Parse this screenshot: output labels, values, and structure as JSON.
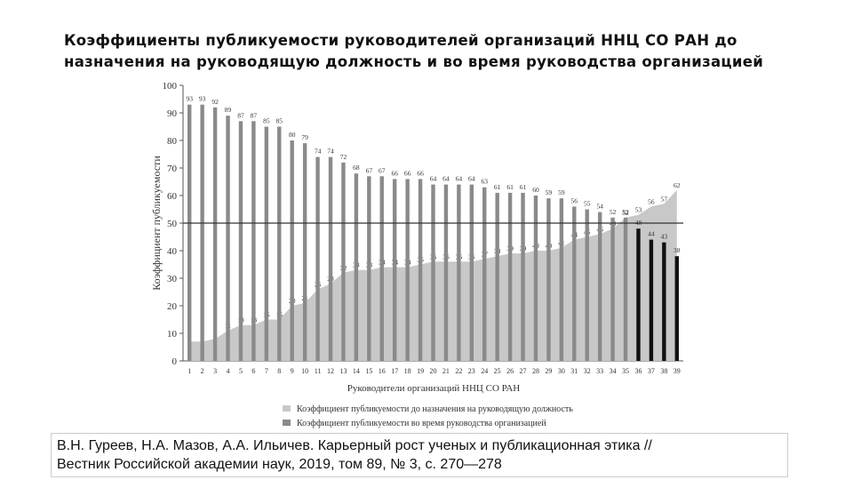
{
  "chart_data": {
    "type": "bar-area",
    "title": [
      "Коэффициенты публикуемости руководителей организаций ННЦ СО РАН до",
      "назначения на руководящую должность и во время руководства организацией"
    ],
    "y_label": "Коэффициент публикуемости",
    "x_label": "Руководители организаций ННЦ СО РАН",
    "categories": [
      "1",
      "2",
      "3",
      "4",
      "5",
      "6",
      "7",
      "8",
      "9",
      "10",
      "11",
      "12",
      "13",
      "14",
      "15",
      "16",
      "17",
      "18",
      "19",
      "20",
      "21",
      "22",
      "23",
      "24",
      "25",
      "26",
      "27",
      "28",
      "29",
      "30",
      "31",
      "32",
      "33",
      "34",
      "35",
      "36",
      "37",
      "38",
      "39"
    ],
    "series": [
      {
        "name": "Коэффициент публикуемости до назначения на руководящую должность",
        "type": "area",
        "color": "#c8c8c8",
        "values": [
          7,
          7,
          8,
          11,
          13,
          13,
          15,
          15,
          20,
          21,
          26,
          28,
          32,
          33,
          33,
          34,
          34,
          34,
          35,
          36,
          36,
          36,
          36,
          37,
          38,
          39,
          39,
          40,
          40,
          41,
          44,
          45,
          46,
          48,
          52,
          53,
          56,
          57,
          62
        ]
      },
      {
        "name": "Коэффициент публикуемости во время руководства организацией",
        "type": "bar",
        "color": "#8a8a8a",
        "colors": [
          "#8a8a8a",
          "#8a8a8a",
          "#8a8a8a",
          "#8a8a8a",
          "#8a8a8a",
          "#8a8a8a",
          "#8a8a8a",
          "#8a8a8a",
          "#8a8a8a",
          "#8a8a8a",
          "#8a8a8a",
          "#8a8a8a",
          "#8a8a8a",
          "#8a8a8a",
          "#8a8a8a",
          "#8a8a8a",
          "#8a8a8a",
          "#8a8a8a",
          "#8a8a8a",
          "#8a8a8a",
          "#8a8a8a",
          "#8a8a8a",
          "#8a8a8a",
          "#8a8a8a",
          "#8a8a8a",
          "#8a8a8a",
          "#8a8a8a",
          "#8a8a8a",
          "#8a8a8a",
          "#8a8a8a",
          "#8a8a8a",
          "#8a8a8a",
          "#8a8a8a",
          "#8a8a8a",
          "#8a8a8a",
          "#111111",
          "#111111",
          "#111111",
          "#111111"
        ],
        "values": [
          93,
          93,
          92,
          89,
          87,
          87,
          85,
          85,
          80,
          79,
          74,
          74,
          72,
          68,
          67,
          67,
          66,
          66,
          66,
          64,
          64,
          64,
          64,
          63,
          61,
          61,
          61,
          60,
          59,
          59,
          56,
          55,
          54,
          52,
          52,
          48,
          44,
          43,
          38
        ]
      }
    ],
    "reference_line": 50,
    "ylim": [
      0,
      100
    ],
    "yticks": [
      0,
      10,
      20,
      30,
      40,
      50,
      60,
      70,
      80,
      90,
      100
    ]
  },
  "source": [
    "В.Н. Гуреев, Н.А. Мазов, А.А. Ильичев. Карьерный рост ученых и публикационная этика //",
    "Вестник Российской академии наук, 2019, том 89, № 3, с. 270—278"
  ]
}
